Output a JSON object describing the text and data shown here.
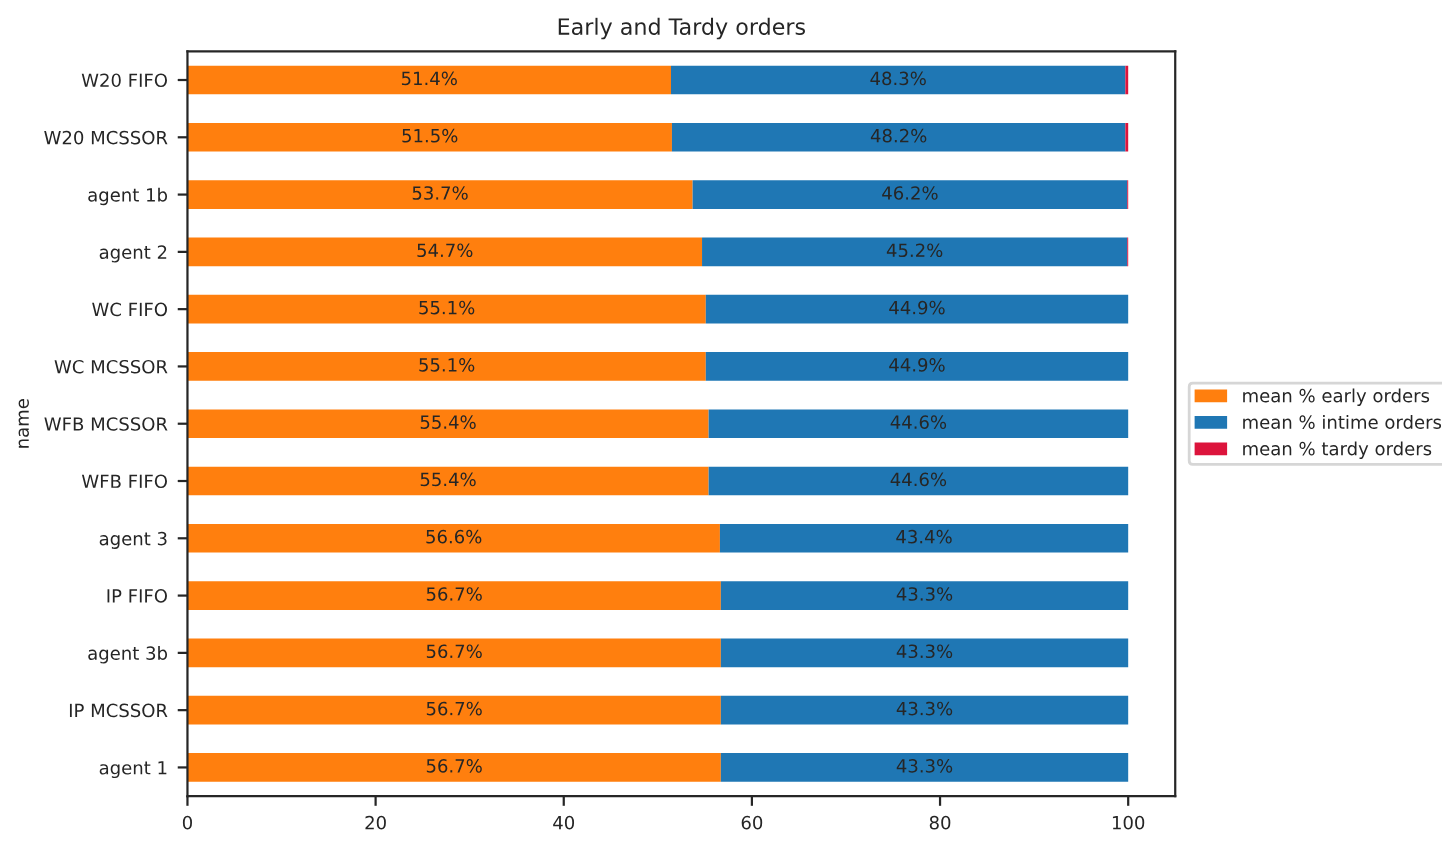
{
  "chart_data": {
    "type": "bar",
    "orientation": "horizontal",
    "stacked": true,
    "title": "Early and Tardy orders",
    "ylabel": "name",
    "categories": [
      "W20 FIFO",
      "W20 MCSSOR",
      "agent 1b",
      "agent 2",
      "WC FIFO",
      "WC MCSSOR",
      "WFB MCSSOR",
      "WFB FIFO",
      "agent 3",
      "IP FIFO",
      "agent 3b",
      "IP MCSSOR",
      "agent 1"
    ],
    "series": [
      {
        "name": "mean % early orders",
        "color": "#ff7f0e",
        "values": [
          51.4,
          51.5,
          53.7,
          54.7,
          55.1,
          55.1,
          55.4,
          55.4,
          56.6,
          56.7,
          56.7,
          56.7,
          56.7
        ],
        "value_labels": [
          "51.4%",
          "51.5%",
          "53.7%",
          "54.7%",
          "55.1%",
          "55.1%",
          "55.4%",
          "55.4%",
          "56.6%",
          "56.7%",
          "56.7%",
          "56.7%",
          "56.7%"
        ]
      },
      {
        "name": "mean % intime orders",
        "color": "#1f77b4",
        "values": [
          48.3,
          48.2,
          46.2,
          45.2,
          44.9,
          44.9,
          44.6,
          44.6,
          43.4,
          43.3,
          43.3,
          43.3,
          43.3
        ],
        "value_labels": [
          "48.3%",
          "48.2%",
          "46.2%",
          "45.2%",
          "44.9%",
          "44.9%",
          "44.6%",
          "44.6%",
          "43.4%",
          "43.3%",
          "43.3%",
          "43.3%",
          "43.3%"
        ]
      },
      {
        "name": "mean % tardy orders",
        "color": "#dc143c",
        "values": [
          0.3,
          0.3,
          0.1,
          0.1,
          0,
          0,
          0,
          0,
          0,
          0,
          0,
          0,
          0
        ]
      }
    ],
    "xlim": [
      0,
      105
    ],
    "xticks": [
      0,
      20,
      40,
      60,
      80,
      100
    ],
    "grid": false,
    "legend": "right"
  }
}
